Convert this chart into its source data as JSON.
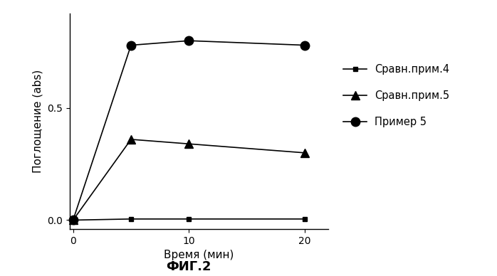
{
  "series": [
    {
      "label": "Сравн.прим.4",
      "x": [
        0,
        5,
        10,
        20
      ],
      "y": [
        0.0,
        0.005,
        0.005,
        0.005
      ],
      "marker": "s",
      "color": "#000000",
      "linewidth": 1.2,
      "markersize": 4
    },
    {
      "label": "Сравн.прим.5",
      "x": [
        0,
        5,
        10,
        20
      ],
      "y": [
        0.0,
        0.36,
        0.34,
        0.3
      ],
      "marker": "^",
      "color": "#000000",
      "linewidth": 1.2,
      "markersize": 9
    },
    {
      "label": "Пример 5",
      "x": [
        0,
        5,
        10,
        20
      ],
      "y": [
        0.0,
        0.78,
        0.8,
        0.78
      ],
      "marker": "o",
      "color": "#000000",
      "linewidth": 1.2,
      "markersize": 9
    }
  ],
  "xlabel": "Время (мин)",
  "ylabel": "Поглощение (abs)",
  "figure_title": "ФИГ.2",
  "xlim": [
    -0.3,
    22
  ],
  "ylim": [
    -0.04,
    0.92
  ],
  "xticks": [
    0,
    10,
    20
  ],
  "yticks": [
    0.0,
    0.5
  ],
  "background_color": "#ffffff",
  "legend_fontsize": 10.5,
  "axis_label_fontsize": 11,
  "tick_fontsize": 10,
  "figure_title_fontsize": 13
}
